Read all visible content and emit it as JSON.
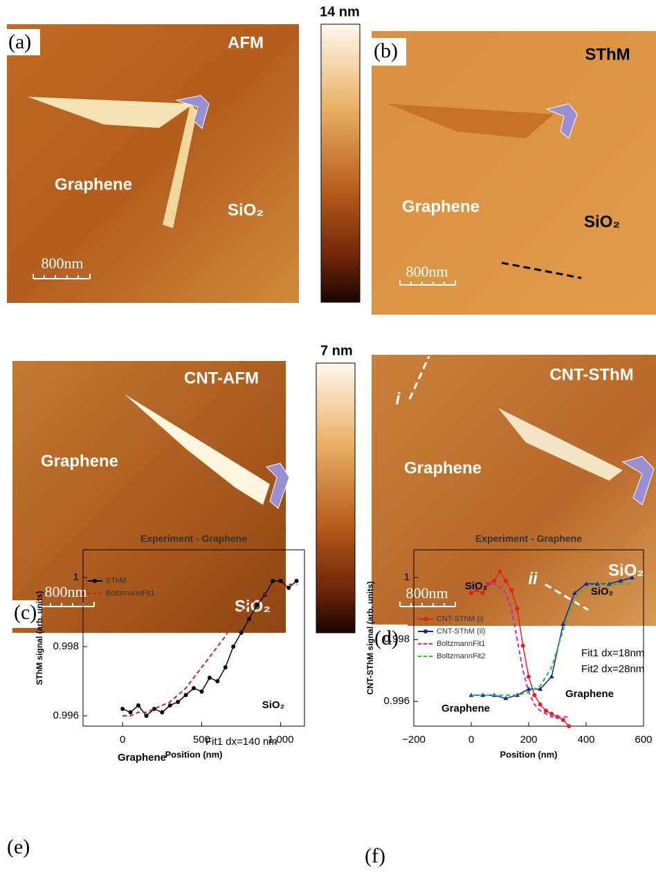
{
  "panels": [
    {
      "label": "(a)",
      "texts": [
        "AFM",
        "Graphene",
        "SiO₂",
        "800nm"
      ]
    },
    {
      "label": "(b)",
      "texts": [
        "SThM",
        "Graphene",
        "SiO₂",
        "800nm"
      ]
    },
    {
      "label": "(c)",
      "texts": [
        "CNT-AFM",
        "Graphene",
        "SiO₂",
        "800nm"
      ]
    },
    {
      "label": "(d)",
      "texts": [
        "CNT-SThM",
        "i",
        "Graphene",
        "ii",
        "SiO₂",
        "800nm"
      ]
    },
    {
      "label": "(e)"
    },
    {
      "label": "(f)"
    }
  ],
  "colorbars": [
    "14 nm",
    "7 nm"
  ],
  "chart_data": [
    {
      "type": "line",
      "title": "Experiment - Graphene",
      "x_label": "Position (nm)",
      "y_label": "SThM signal (arb. units)",
      "xlim": [
        -250,
        1150
      ],
      "xticks": [
        0,
        500,
        {
          "value": 1000,
          "label": "1,000"
        }
      ],
      "ylim": [
        0.9957,
        1.0008
      ],
      "yticks": [
        0.996,
        0.998,
        1
      ],
      "legend": "upper left",
      "series": [
        {
          "name": "SThM",
          "color": "#000000",
          "marker": "circle",
          "dash": false,
          "x": [
            0,
            50,
            100,
            150,
            200,
            250,
            300,
            350,
            400,
            450,
            500,
            550,
            600,
            650,
            700,
            750,
            800,
            850,
            900,
            950,
            1000,
            1050,
            1100
          ],
          "values": [
            0.9962,
            0.9961,
            0.9963,
            0.996,
            0.9962,
            0.9961,
            0.9963,
            0.9964,
            0.9966,
            0.9968,
            0.9967,
            0.9971,
            0.997,
            0.9974,
            0.998,
            0.9984,
            0.9988,
            0.9992,
            0.9995,
            0.9999,
            0.9999,
            0.9997,
            0.9999
          ]
        },
        {
          "name": "BoltzmannFit1",
          "color": "#cc2222",
          "marker": "none",
          "dash": true,
          "x": [
            0,
            50,
            100,
            150,
            200,
            250,
            300,
            350,
            400,
            450,
            500,
            550,
            600,
            650,
            700,
            750,
            800,
            850,
            900,
            950,
            1000,
            1050,
            1100
          ],
          "values": [
            0.996,
            0.996,
            0.9961,
            0.9961,
            0.9962,
            0.9963,
            0.9964,
            0.9966,
            0.9968,
            0.9971,
            0.9974,
            0.9977,
            0.998,
            0.9983,
            0.9987,
            0.999,
            0.9992,
            0.9994,
            0.9995,
            0.9996,
            0.9997,
            0.9998,
            0.9998
          ]
        }
      ],
      "annotations": [
        "Graphene",
        "SiO₂",
        "Fit1 dx=140 nm"
      ]
    },
    {
      "type": "line",
      "title": "Experiment - Graphene",
      "x_label": "Position (nm)",
      "y_label": "CNT-SThM signal (arb. units)",
      "xlim": [
        -200,
        600
      ],
      "xticks": [
        {
          "value": -200,
          "label": "−200"
        },
        0,
        200,
        400,
        600
      ],
      "ylim": [
        0.9952,
        1.0009
      ],
      "yticks": [
        0.996,
        0.998,
        1
      ],
      "legend": "left",
      "series": [
        {
          "name": "CNT-SThM (i)",
          "color": "#dd2222",
          "marker": "circle",
          "dash": false,
          "x": [
            0,
            20,
            40,
            60,
            80,
            100,
            120,
            140,
            160,
            180,
            200,
            220,
            240,
            260,
            280,
            300,
            320,
            340
          ],
          "values": [
            0.9995,
            0.9996,
            0.9995,
            0.9998,
            0.9999,
            1.0002,
            0.9999,
            0.9996,
            0.999,
            0.9978,
            0.9968,
            0.9962,
            0.9959,
            0.9957,
            0.9956,
            0.9955,
            0.9954,
            0.9952
          ]
        },
        {
          "name": "CNT-SThM (ii)",
          "color": "#1122aa",
          "marker": "triangle",
          "dash": false,
          "x": [
            0,
            40,
            80,
            120,
            160,
            200,
            240,
            280,
            320,
            360,
            400,
            440,
            480,
            520,
            560
          ],
          "values": [
            0.9962,
            0.9962,
            0.9962,
            0.9961,
            0.9962,
            0.9964,
            0.9964,
            0.9968,
            0.9985,
            0.9995,
            0.9998,
            0.9998,
            0.9998,
            0.9999,
            1
          ]
        },
        {
          "name": "BoltzmannFit1",
          "color": "#cc22cc",
          "marker": "none",
          "dash": true,
          "x": [
            0,
            20,
            40,
            60,
            80,
            100,
            120,
            140,
            160,
            180,
            200,
            220,
            240,
            260,
            280,
            300,
            320,
            340
          ],
          "values": [
            0.9998,
            0.9998,
            0.9998,
            0.9998,
            0.9998,
            0.9997,
            0.9995,
            0.999,
            0.998,
            0.997,
            0.9963,
            0.9959,
            0.9957,
            0.9956,
            0.9955,
            0.9955,
            0.9955,
            0.9955
          ]
        },
        {
          "name": "BoltzmannFit2",
          "color": "#33bb33",
          "marker": "none",
          "dash": true,
          "x": [
            0,
            40,
            80,
            120,
            160,
            200,
            240,
            280,
            320,
            360,
            400,
            440,
            480,
            520,
            560
          ],
          "values": [
            0.9962,
            0.9962,
            0.9962,
            0.9962,
            0.9962,
            0.9963,
            0.9965,
            0.9971,
            0.9983,
            0.9993,
            0.9997,
            0.9998,
            0.9998,
            0.9998,
            0.9998
          ]
        }
      ],
      "annotations": [
        "SiO₂",
        "SiO₂",
        "Fit1 dx=18nm",
        "Fit2 dx=28nm",
        "Graphene",
        "Graphene"
      ]
    }
  ]
}
